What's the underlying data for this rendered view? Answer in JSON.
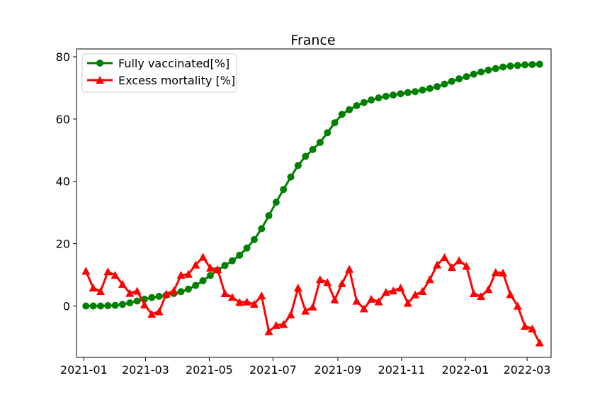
{
  "chart_data": {
    "type": "line",
    "title": "France",
    "xlabel": "",
    "ylabel": "",
    "x_axis_kind": "date",
    "xlim": [
      "2020-12-25",
      "2022-03-24"
    ],
    "ylim": [
      -16.5,
      82.5
    ],
    "x_ticks": [
      "2021-01",
      "2021-03",
      "2021-05",
      "2021-07",
      "2021-09",
      "2021-11",
      "2022-01",
      "2022-03"
    ],
    "y_ticks": [
      0,
      20,
      40,
      60,
      80
    ],
    "grid": false,
    "legend_position": "upper-left",
    "series": [
      {
        "name": "Fully vaccinated[%]",
        "color": "#008000",
        "marker": "circle",
        "points": [
          [
            "2021-01-03",
            0.0
          ],
          [
            "2021-01-10",
            0.0
          ],
          [
            "2021-01-17",
            0.0
          ],
          [
            "2021-01-24",
            0.1
          ],
          [
            "2021-01-31",
            0.2
          ],
          [
            "2021-02-07",
            0.5
          ],
          [
            "2021-02-14",
            1.0
          ],
          [
            "2021-02-21",
            1.6
          ],
          [
            "2021-02-28",
            2.2
          ],
          [
            "2021-03-07",
            2.7
          ],
          [
            "2021-03-14",
            3.1
          ],
          [
            "2021-03-21",
            3.5
          ],
          [
            "2021-03-28",
            4.0
          ],
          [
            "2021-04-04",
            4.6
          ],
          [
            "2021-04-11",
            5.4
          ],
          [
            "2021-04-18",
            6.6
          ],
          [
            "2021-04-25",
            8.1
          ],
          [
            "2021-05-02",
            9.8
          ],
          [
            "2021-05-09",
            11.5
          ],
          [
            "2021-05-16",
            13.0
          ],
          [
            "2021-05-23",
            14.5
          ],
          [
            "2021-05-30",
            16.3
          ],
          [
            "2021-06-06",
            18.6
          ],
          [
            "2021-06-13",
            21.3
          ],
          [
            "2021-06-20",
            24.8
          ],
          [
            "2021-06-27",
            29.0
          ],
          [
            "2021-07-04",
            33.3
          ],
          [
            "2021-07-11",
            37.4
          ],
          [
            "2021-07-18",
            41.4
          ],
          [
            "2021-07-25",
            45.1
          ],
          [
            "2021-08-01",
            48.0
          ],
          [
            "2021-08-08",
            50.2
          ],
          [
            "2021-08-15",
            52.5
          ],
          [
            "2021-08-22",
            55.6
          ],
          [
            "2021-08-29",
            58.8
          ],
          [
            "2021-09-05",
            61.5
          ],
          [
            "2021-09-12",
            63.0
          ],
          [
            "2021-09-19",
            64.3
          ],
          [
            "2021-09-26",
            65.3
          ],
          [
            "2021-10-03",
            66.1
          ],
          [
            "2021-10-10",
            66.8
          ],
          [
            "2021-10-17",
            67.3
          ],
          [
            "2021-10-24",
            67.7
          ],
          [
            "2021-10-31",
            68.1
          ],
          [
            "2021-11-07",
            68.5
          ],
          [
            "2021-11-14",
            68.8
          ],
          [
            "2021-11-21",
            69.3
          ],
          [
            "2021-11-28",
            69.8
          ],
          [
            "2021-12-05",
            70.4
          ],
          [
            "2021-12-12",
            71.2
          ],
          [
            "2021-12-19",
            72.1
          ],
          [
            "2021-12-26",
            72.9
          ],
          [
            "2022-01-02",
            73.6
          ],
          [
            "2022-01-09",
            74.4
          ],
          [
            "2022-01-16",
            75.1
          ],
          [
            "2022-01-23",
            75.7
          ],
          [
            "2022-01-30",
            76.2
          ],
          [
            "2022-02-06",
            76.7
          ],
          [
            "2022-02-13",
            77.0
          ],
          [
            "2022-02-20",
            77.2
          ],
          [
            "2022-02-27",
            77.4
          ],
          [
            "2022-03-06",
            77.5
          ],
          [
            "2022-03-13",
            77.6
          ]
        ]
      },
      {
        "name": "Excess mortality [%]",
        "color": "#ff0000",
        "marker": "triangle",
        "points": [
          [
            "2021-01-03",
            11.2
          ],
          [
            "2021-01-10",
            5.8
          ],
          [
            "2021-01-17",
            4.7
          ],
          [
            "2021-01-24",
            11.0
          ],
          [
            "2021-01-31",
            9.9
          ],
          [
            "2021-02-07",
            7.0
          ],
          [
            "2021-02-14",
            4.1
          ],
          [
            "2021-02-21",
            4.8
          ],
          [
            "2021-02-28",
            0.4
          ],
          [
            "2021-03-07",
            -2.6
          ],
          [
            "2021-03-14",
            -1.8
          ],
          [
            "2021-03-21",
            3.9
          ],
          [
            "2021-03-28",
            4.8
          ],
          [
            "2021-04-04",
            9.9
          ],
          [
            "2021-04-11",
            10.2
          ],
          [
            "2021-04-18",
            13.2
          ],
          [
            "2021-04-25",
            15.7
          ],
          [
            "2021-05-02",
            12.2
          ],
          [
            "2021-05-09",
            11.7
          ],
          [
            "2021-05-16",
            4.0
          ],
          [
            "2021-05-23",
            2.8
          ],
          [
            "2021-05-30",
            1.2
          ],
          [
            "2021-06-06",
            1.3
          ],
          [
            "2021-06-13",
            0.6
          ],
          [
            "2021-06-20",
            3.3
          ],
          [
            "2021-06-27",
            -8.2
          ],
          [
            "2021-07-04",
            -6.2
          ],
          [
            "2021-07-11",
            -5.9
          ],
          [
            "2021-07-18",
            -2.8
          ],
          [
            "2021-07-25",
            5.8
          ],
          [
            "2021-08-01",
            -1.6
          ],
          [
            "2021-08-08",
            -0.3
          ],
          [
            "2021-08-15",
            8.5
          ],
          [
            "2021-08-22",
            7.6
          ],
          [
            "2021-08-29",
            2.0
          ],
          [
            "2021-09-05",
            7.2
          ],
          [
            "2021-09-12",
            11.8
          ],
          [
            "2021-09-19",
            1.6
          ],
          [
            "2021-09-26",
            -0.9
          ],
          [
            "2021-10-03",
            2.2
          ],
          [
            "2021-10-10",
            1.4
          ],
          [
            "2021-10-17",
            4.4
          ],
          [
            "2021-10-24",
            4.9
          ],
          [
            "2021-10-31",
            5.8
          ],
          [
            "2021-11-07",
            0.9
          ],
          [
            "2021-11-14",
            3.6
          ],
          [
            "2021-11-21",
            4.7
          ],
          [
            "2021-11-28",
            8.5
          ],
          [
            "2021-12-05",
            13.2
          ],
          [
            "2021-12-12",
            15.6
          ],
          [
            "2021-12-19",
            12.4
          ],
          [
            "2021-12-26",
            14.6
          ],
          [
            "2022-01-02",
            12.8
          ],
          [
            "2022-01-09",
            4.0
          ],
          [
            "2022-01-16",
            3.1
          ],
          [
            "2022-01-23",
            5.3
          ],
          [
            "2022-01-30",
            10.8
          ],
          [
            "2022-02-06",
            10.6
          ],
          [
            "2022-02-13",
            3.7
          ],
          [
            "2022-02-20",
            0.0
          ],
          [
            "2022-02-27",
            -6.5
          ],
          [
            "2022-03-06",
            -7.3
          ],
          [
            "2022-03-13",
            -11.8
          ]
        ]
      }
    ]
  }
}
